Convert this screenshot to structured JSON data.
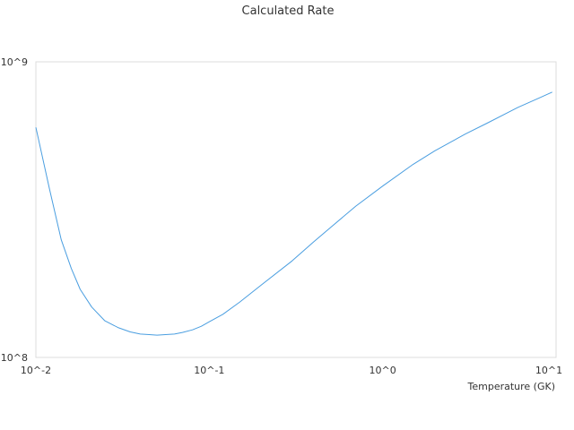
{
  "chart_data": {
    "type": "line",
    "title": "Calculated Rate",
    "xlabel": "Temperature (GK)",
    "ylabel": "",
    "x_scale": "log",
    "y_scale": "log",
    "xlim": [
      0.01,
      10
    ],
    "ylim": [
      100000000,
      1000000000
    ],
    "grid": false,
    "legend": "none",
    "x_tick_labels": [
      "10^-2",
      "10^-1",
      "10^0",
      "10^1"
    ],
    "y_tick_labels": [
      "10^8",
      "10^9"
    ],
    "series": [
      {
        "color": "#4a9ee0",
        "x": [
          0.01,
          0.012,
          0.014,
          0.016,
          0.018,
          0.021,
          0.025,
          0.03,
          0.035,
          0.04,
          0.045,
          0.05,
          0.056,
          0.063,
          0.07,
          0.08,
          0.09,
          0.1,
          0.12,
          0.15,
          0.2,
          0.3,
          0.4,
          0.5,
          0.7,
          1.0,
          1.5,
          2.0,
          3.0,
          4.0,
          6.0,
          8.0,
          9.5
        ],
        "y": [
          600000000,
          370000000,
          250000000,
          200000000,
          170000000,
          148000000,
          133000000,
          126000000,
          122000000,
          120000000,
          119500000,
          119000000,
          119500000,
          120000000,
          121500000,
          124000000,
          127500000,
          132000000,
          140000000,
          154000000,
          176000000,
          212000000,
          246000000,
          275000000,
          325000000,
          380000000,
          450000000,
          500000000,
          570000000,
          620000000,
          700000000,
          755000000,
          790000000
        ]
      }
    ]
  }
}
